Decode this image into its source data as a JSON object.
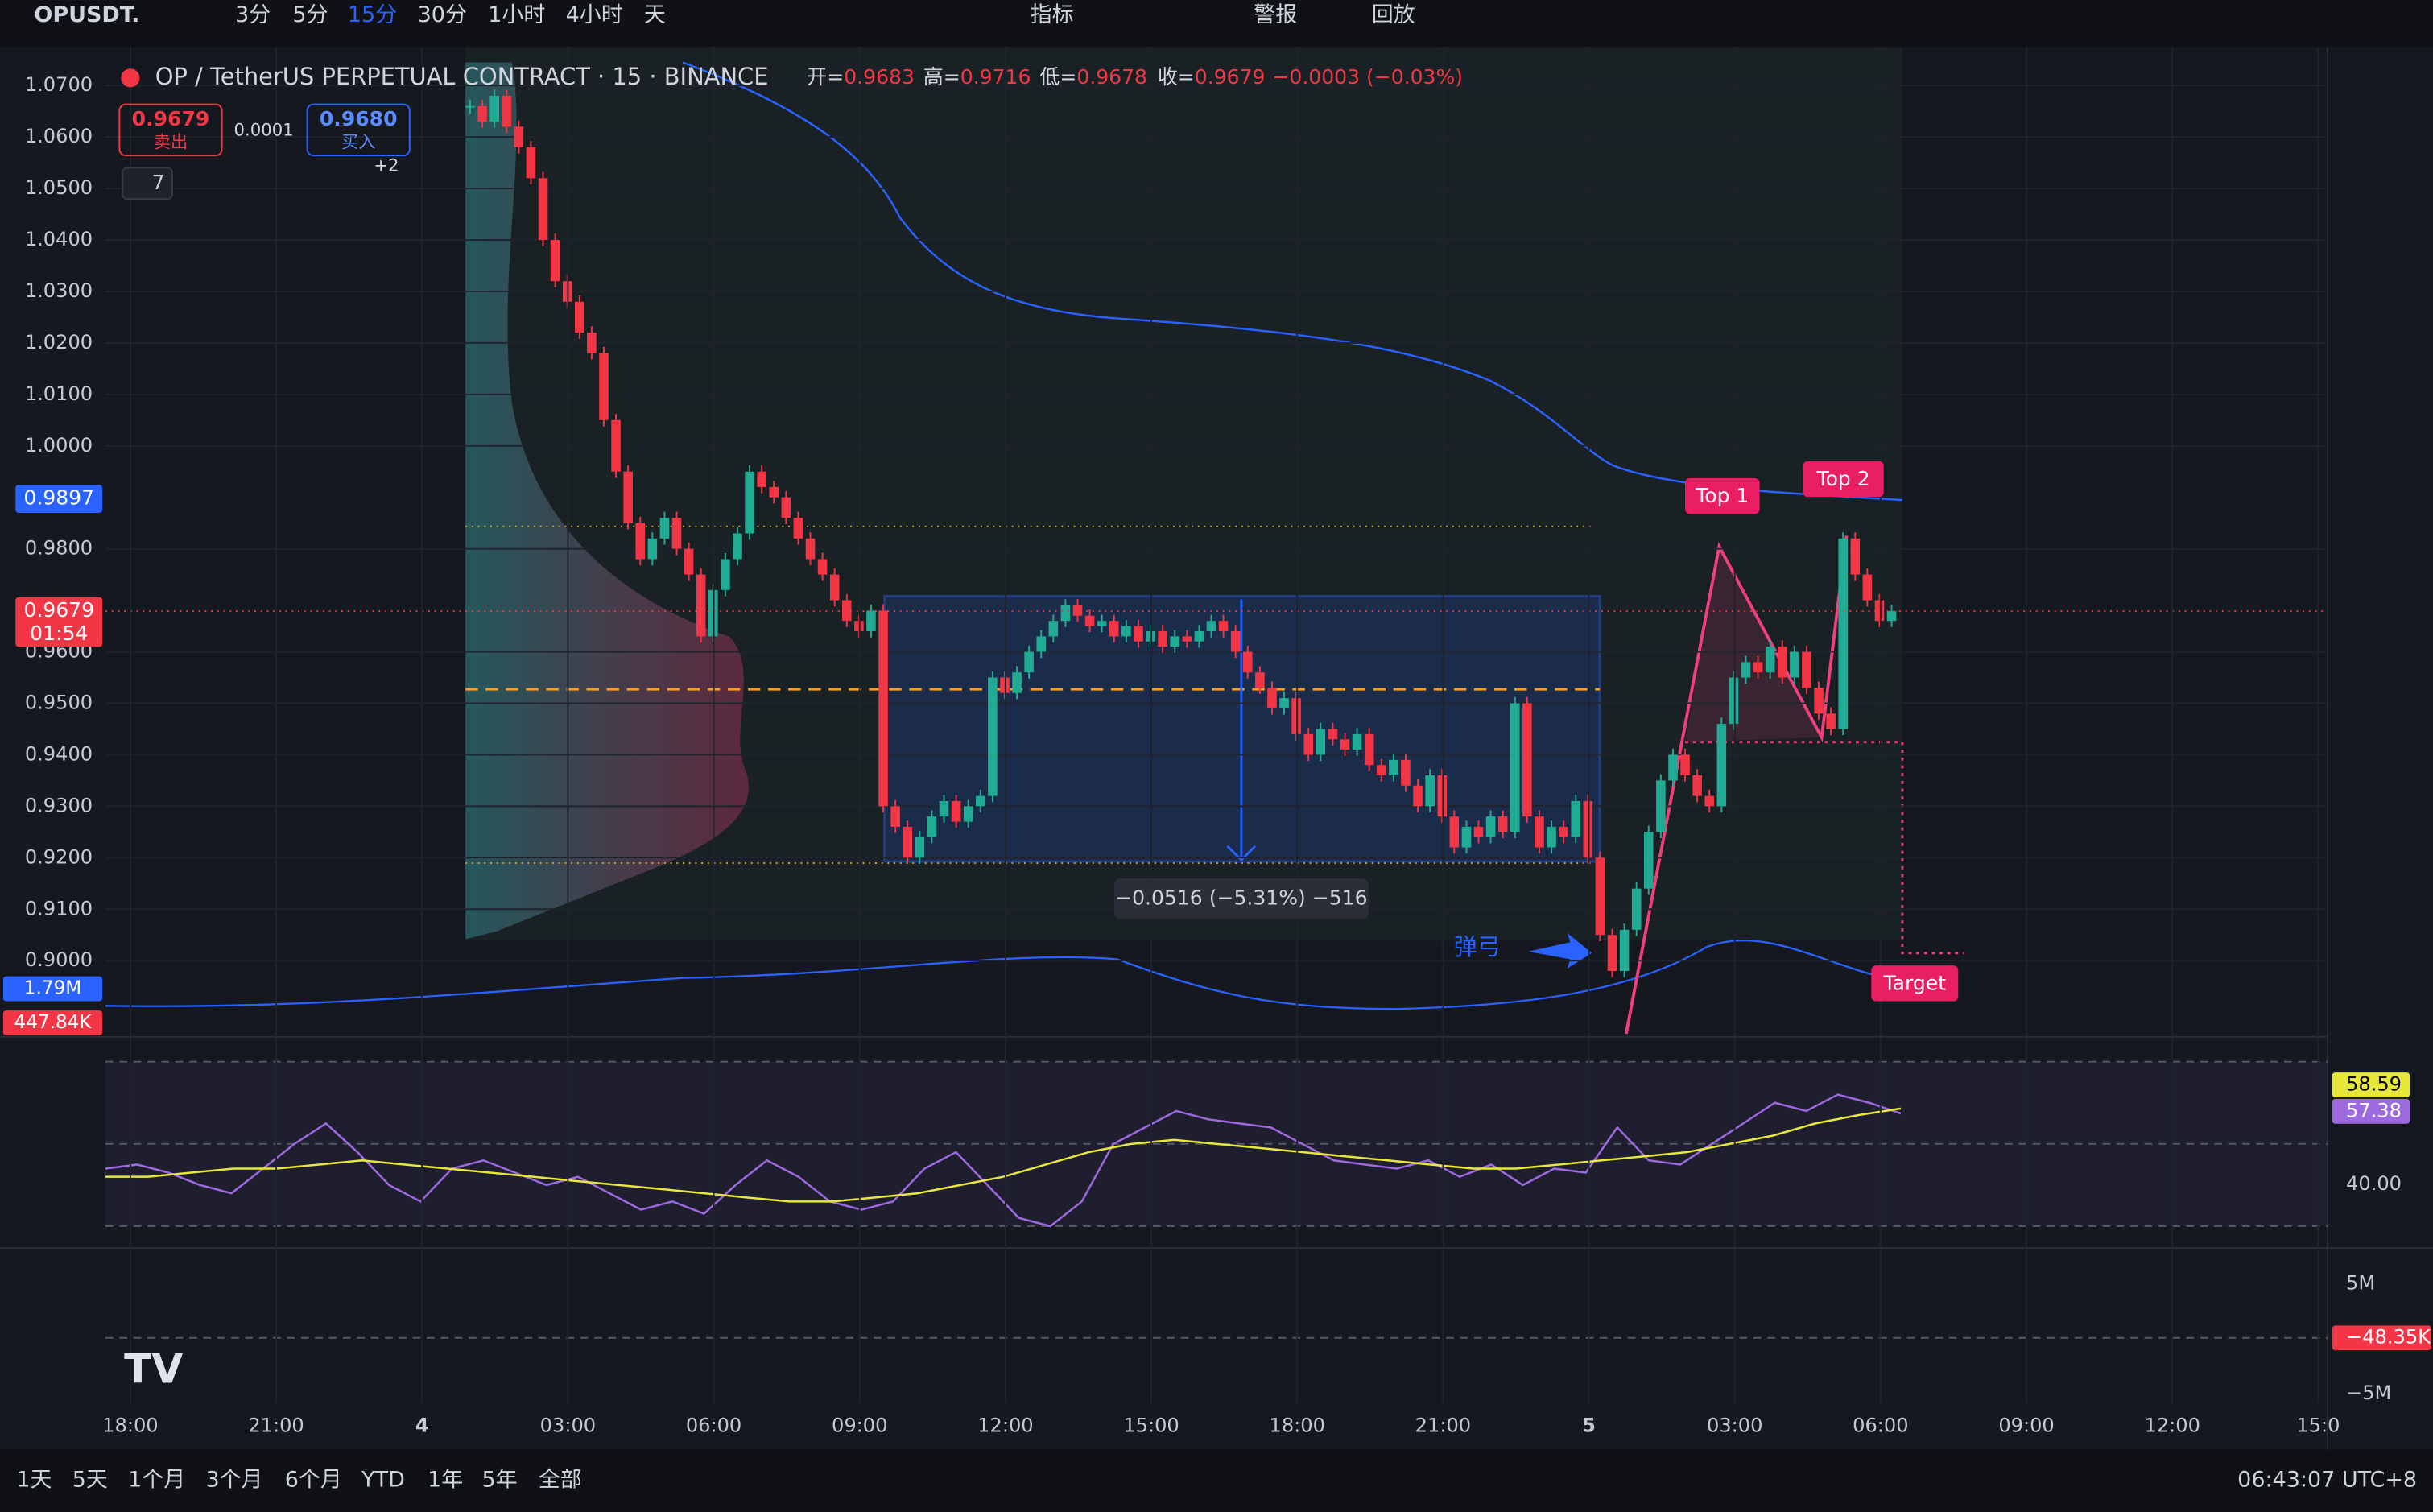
{
  "toolbar": {
    "symbol": "OPUSDT.",
    "intervals": [
      "3分",
      "5分",
      "15分",
      "30分",
      "1小时",
      "4小时",
      "天"
    ],
    "active_interval": 2,
    "indicators": "指标",
    "alerts": "警报",
    "replay": "回放"
  },
  "legend": {
    "title": "OP / TetherUS PERPETUAL CONTRACT · 15 · BINANCE",
    "ohlc": [
      {
        "label": "开=",
        "value": "0.9683"
      },
      {
        "label": "高=",
        "value": "0.9716"
      },
      {
        "label": "低=",
        "value": "0.9678"
      },
      {
        "label": "收=",
        "value": "0.9679"
      }
    ],
    "change": "−0.0003 (−0.03%)"
  },
  "order_panel": {
    "sell_price": "0.9679",
    "sell": "卖出",
    "spread": "0.0001",
    "buy_price": "0.9680",
    "buy": "买入",
    "more": "+2",
    "collapsed": "7"
  },
  "price_pane": {
    "ylim": [
      0.8852,
      1.0775
    ],
    "yticks": [
      {
        "value": 1.07,
        "label": "1.0700"
      },
      {
        "value": 1.06,
        "label": "1.0600"
      },
      {
        "value": 1.05,
        "label": "1.0500"
      },
      {
        "value": 1.04,
        "label": "1.0400"
      },
      {
        "value": 1.03,
        "label": "1.0300"
      },
      {
        "value": 1.02,
        "label": "1.0200"
      },
      {
        "value": 1.01,
        "label": "1.0100"
      },
      {
        "value": 1.0,
        "label": "1.0000"
      },
      {
        "value": 0.98,
        "label": "0.9800"
      },
      {
        "value": 0.96,
        "label": "0.9600"
      },
      {
        "value": 0.95,
        "label": "0.9500"
      },
      {
        "value": 0.94,
        "label": "0.9400"
      },
      {
        "value": 0.93,
        "label": "0.9300"
      },
      {
        "value": 0.92,
        "label": "0.9200"
      },
      {
        "value": 0.91,
        "label": "0.9100"
      },
      {
        "value": 0.9,
        "label": "0.9000"
      }
    ],
    "closes": [
      1.066,
      1.063,
      1.068,
      1.062,
      1.058,
      1.052,
      1.04,
      1.032,
      1.028,
      1.022,
      1.018,
      1.005,
      0.995,
      0.985,
      0.978,
      0.982,
      0.986,
      0.98,
      0.975,
      0.963,
      0.972,
      0.978,
      0.983,
      0.995,
      0.992,
      0.99,
      0.986,
      0.982,
      0.978,
      0.975,
      0.97,
      0.966,
      0.964,
      0.968,
      0.93,
      0.926,
      0.92,
      0.924,
      0.928,
      0.931,
      0.927,
      0.93,
      0.932,
      0.955,
      0.952,
      0.956,
      0.96,
      0.963,
      0.966,
      0.969,
      0.967,
      0.965,
      0.966,
      0.963,
      0.965,
      0.962,
      0.964,
      0.961,
      0.963,
      0.962,
      0.964,
      0.966,
      0.964,
      0.96,
      0.956,
      0.953,
      0.949,
      0.951,
      0.944,
      0.94,
      0.945,
      0.943,
      0.941,
      0.944,
      0.938,
      0.936,
      0.939,
      0.934,
      0.93,
      0.936,
      0.928,
      0.922,
      0.926,
      0.924,
      0.928,
      0.925,
      0.95,
      0.928,
      0.922,
      0.926,
      0.924,
      0.931,
      0.92,
      0.905,
      0.898,
      0.906,
      0.914,
      0.925,
      0.935,
      0.94,
      0.936,
      0.932,
      0.93,
      0.946,
      0.955,
      0.958,
      0.956,
      0.961,
      0.955,
      0.96,
      0.953,
      0.948,
      0.945,
      0.982,
      0.975,
      0.97,
      0.966,
      0.9679
    ],
    "line_badge": {
      "value": 0.9897,
      "label": "0.9897"
    },
    "last_badge": {
      "value": 0.9679,
      "label": "0.9679",
      "countdown": "01:54"
    },
    "volume_badges": [
      "1.79M",
      "447.84K"
    ]
  },
  "annotations": {
    "top1": "Top 1",
    "top2": "Top 2",
    "target": "Target",
    "slingshot": "弹弓",
    "measure": "−0.0516 (−5.31%) −516"
  },
  "rsi_pane": {
    "ylim": [
      30,
      70
    ],
    "rsi": [
      44,
      45,
      43,
      40,
      38,
      44,
      50,
      55,
      48,
      40,
      36,
      44,
      46,
      43,
      40,
      42,
      38,
      34,
      36,
      33,
      40,
      46,
      42,
      36,
      34,
      36,
      44,
      48,
      40,
      32,
      30,
      36,
      50,
      54,
      58,
      56,
      55,
      54,
      50,
      46,
      45,
      44,
      46,
      42,
      45,
      40,
      44,
      43,
      54,
      46,
      45,
      50,
      55,
      60,
      58,
      62,
      60,
      57.38
    ],
    "ma": [
      42,
      42,
      43,
      44,
      44,
      45,
      46,
      45,
      44,
      43,
      42,
      41,
      40,
      39,
      38,
      37,
      36,
      36,
      37,
      38,
      40,
      42,
      45,
      48,
      50,
      51,
      50,
      49,
      48,
      47,
      46,
      45,
      44,
      44,
      45,
      46,
      47,
      48,
      50,
      52,
      55,
      57,
      58.59
    ],
    "labels": [
      {
        "value": 58.59,
        "label": "58.59"
      },
      {
        "value": 57.38,
        "label": "57.38"
      },
      {
        "value": 40,
        "label": "40.00"
      }
    ]
  },
  "delta_pane": {
    "labels": [
      "5M",
      "−48.35K",
      "−5M"
    ]
  },
  "time_axis": [
    "18:00",
    "21:00",
    "4",
    "03:00",
    "06:00",
    "09:00",
    "12:00",
    "15:00",
    "18:00",
    "21:00",
    "5",
    "03:00",
    "06:00",
    "09:00",
    "12:00",
    "15:0"
  ],
  "bottom_bar": {
    "ranges": [
      "1天",
      "5天",
      "1个月",
      "3个月",
      "6个月",
      "YTD",
      "1年",
      "5年",
      "全部"
    ],
    "clock": "06:43:07 UTC+8"
  }
}
